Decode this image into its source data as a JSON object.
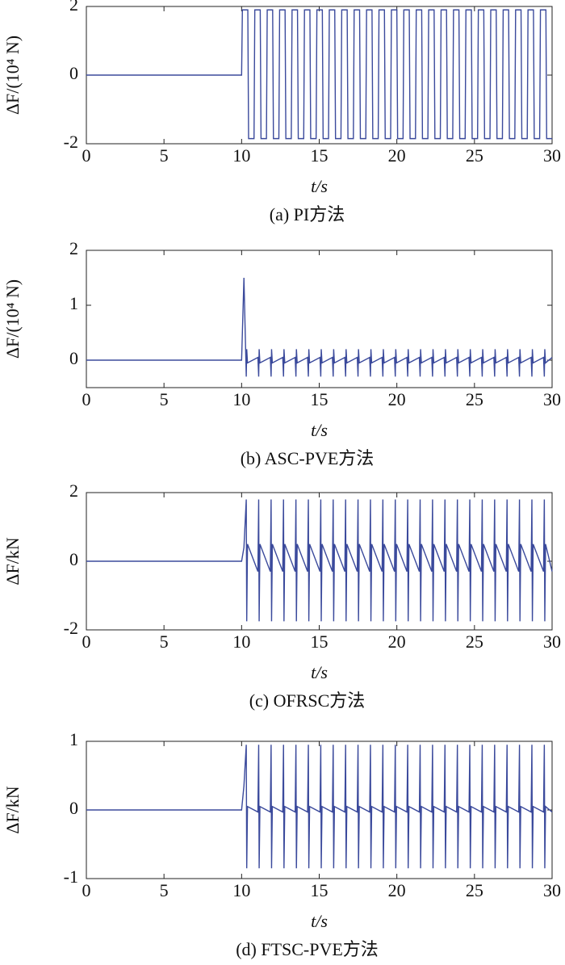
{
  "chart_data": [
    {
      "type": "line",
      "caption": "(a) PI方法",
      "ylabel": "ΔF/(10⁴ N)",
      "xlabel": "t/s",
      "xlim": [
        0,
        30
      ],
      "xticks": [
        0,
        5,
        10,
        15,
        20,
        25,
        30
      ],
      "ylim": [
        -2,
        2
      ],
      "yticks": [
        -2,
        0,
        2
      ],
      "x": [
        0,
        10,
        10.05,
        10.4,
        10.45,
        10.8,
        10.85,
        11.2,
        11.25,
        11.6,
        11.65,
        12,
        12.05,
        12.4,
        12.45,
        12.8,
        12.85,
        13.2,
        13.25,
        13.6,
        13.65,
        14,
        14.05,
        14.4,
        14.45,
        14.8,
        14.85,
        15.2,
        15.25,
        15.6,
        15.65,
        16,
        16.05,
        16.4,
        16.45,
        16.8,
        16.85,
        17.2,
        17.25,
        17.6,
        17.65,
        18,
        18.05,
        18.4,
        18.45,
        18.8,
        18.85,
        19.2,
        19.25,
        19.6,
        19.65,
        20,
        20.05,
        20.4,
        20.45,
        20.8,
        20.85,
        21.2,
        21.25,
        21.6,
        21.65,
        22,
        22.05,
        22.4,
        22.45,
        22.8,
        22.85,
        23.2,
        23.25,
        23.6,
        23.65,
        24,
        24.05,
        24.4,
        24.45,
        24.8,
        24.85,
        25.2,
        25.25,
        25.6,
        25.65,
        26,
        26.05,
        26.4,
        26.45,
        26.8,
        26.85,
        27.2,
        27.25,
        27.6,
        27.65,
        28,
        28.05,
        28.4,
        28.45,
        28.8,
        28.85,
        29.2,
        29.25,
        29.6,
        29.65,
        30
      ],
      "series": [
        {
          "color": "#3b4a9c",
          "values": [
            0,
            0,
            1.9,
            1.9,
            -1.85,
            -1.85,
            1.9,
            1.9,
            -1.85,
            -1.85,
            1.9,
            1.9,
            -1.85,
            -1.85,
            1.9,
            1.9,
            -1.85,
            -1.85,
            1.9,
            1.9,
            -1.85,
            -1.85,
            1.9,
            1.9,
            -1.85,
            -1.85,
            1.9,
            1.9,
            -1.85,
            -1.85,
            1.9,
            1.9,
            -1.85,
            -1.85,
            1.9,
            1.9,
            -1.85,
            -1.85,
            1.9,
            1.9,
            -1.85,
            -1.85,
            1.9,
            1.9,
            -1.85,
            -1.85,
            1.9,
            1.9,
            -1.85,
            -1.85,
            1.9,
            1.9,
            -1.85,
            -1.85,
            1.9,
            1.9,
            -1.85,
            -1.85,
            1.9,
            1.9,
            -1.85,
            -1.85,
            1.9,
            1.9,
            -1.85,
            -1.85,
            1.9,
            1.9,
            -1.85,
            -1.85,
            1.9,
            1.9,
            -1.85,
            -1.85,
            1.9,
            1.9,
            -1.85,
            -1.85,
            1.9,
            1.9,
            -1.85,
            -1.85,
            1.9,
            1.9,
            -1.85,
            -1.85,
            1.9,
            1.9,
            -1.85,
            -1.85,
            1.9,
            1.9,
            -1.85,
            -1.85,
            1.9,
            1.9,
            -1.85,
            -1.85,
            1.9,
            1.9,
            -1.85,
            -1.85
          ]
        }
      ]
    },
    {
      "type": "line",
      "caption": "(b) ASC-PVE方法",
      "ylabel": "ΔF/(10⁴ N)",
      "xlabel": "t/s",
      "xlim": [
        0,
        30
      ],
      "xticks": [
        0,
        5,
        10,
        15,
        20,
        25,
        30
      ],
      "ylim": [
        -0.5,
        2
      ],
      "yticks": [
        0,
        1,
        2
      ],
      "x": [
        0,
        10,
        10.15,
        10.3,
        10.33,
        10.38,
        11.05,
        11.1,
        11.13,
        11.18,
        11.85,
        11.9,
        11.93,
        11.98,
        12.65,
        12.7,
        12.73,
        12.78,
        13.45,
        13.5,
        13.53,
        13.58,
        14.25,
        14.3,
        14.33,
        14.38,
        15.05,
        15.1,
        15.13,
        15.18,
        15.85,
        15.9,
        15.93,
        15.98,
        16.65,
        16.7,
        16.73,
        16.78,
        17.45,
        17.5,
        17.53,
        17.58,
        18.25,
        18.3,
        18.33,
        18.38,
        19.05,
        19.1,
        19.13,
        19.18,
        19.85,
        19.9,
        19.93,
        19.98,
        20.65,
        20.7,
        20.73,
        20.78,
        21.45,
        21.5,
        21.53,
        21.58,
        22.25,
        22.3,
        22.33,
        22.38,
        23.05,
        23.1,
        23.13,
        23.18,
        23.85,
        23.9,
        23.93,
        23.98,
        24.65,
        24.7,
        24.73,
        24.78,
        25.45,
        25.5,
        25.53,
        25.58,
        26.25,
        26.3,
        26.33,
        26.38,
        27.05,
        27.1,
        27.13,
        27.18,
        27.85,
        27.9,
        27.93,
        27.98,
        28.65,
        28.7,
        28.73,
        28.78,
        29.45,
        29.5,
        29.53,
        29.58,
        30
      ],
      "series": [
        {
          "color": "#3b4a9c",
          "values": [
            0,
            0,
            1.5,
            -0.3,
            0.2,
            -0.05,
            0.05,
            -0.3,
            0.2,
            -0.05,
            0.05,
            -0.3,
            0.2,
            -0.05,
            0.05,
            -0.3,
            0.2,
            -0.05,
            0.05,
            -0.3,
            0.2,
            -0.05,
            0.05,
            -0.3,
            0.2,
            -0.05,
            0.05,
            -0.3,
            0.2,
            -0.05,
            0.05,
            -0.3,
            0.2,
            -0.05,
            0.05,
            -0.3,
            0.2,
            -0.05,
            0.05,
            -0.3,
            0.2,
            -0.05,
            0.05,
            -0.3,
            0.2,
            -0.05,
            0.05,
            -0.3,
            0.2,
            -0.05,
            0.05,
            -0.3,
            0.2,
            -0.05,
            0.05,
            -0.3,
            0.2,
            -0.05,
            0.05,
            -0.3,
            0.2,
            -0.05,
            0.05,
            -0.3,
            0.2,
            -0.05,
            0.05,
            -0.3,
            0.2,
            -0.05,
            0.05,
            -0.3,
            0.2,
            -0.05,
            0.05,
            -0.3,
            0.2,
            -0.05,
            0.05,
            -0.3,
            0.2,
            -0.05,
            0.05,
            -0.3,
            0.2,
            -0.05,
            0.05,
            -0.3,
            0.2,
            -0.05,
            0.05,
            -0.3,
            0.2,
            -0.05,
            0.05,
            -0.3,
            0.2,
            -0.05,
            0.05,
            -0.3,
            0.2,
            -0.05,
            0.05
          ]
        }
      ]
    },
    {
      "type": "line",
      "caption": "(c) OFRSC方法",
      "ylabel": "ΔF/kN",
      "xlabel": "t/s",
      "xlim": [
        0,
        30
      ],
      "xticks": [
        0,
        5,
        10,
        15,
        20,
        25,
        30
      ],
      "ylim": [
        -2,
        2
      ],
      "yticks": [
        -2,
        0,
        2
      ],
      "x": [
        0,
        10,
        10.15,
        10.3,
        10.33,
        10.38,
        11.05,
        11.1,
        11.13,
        11.18,
        11.85,
        11.9,
        11.93,
        11.98,
        12.65,
        12.7,
        12.73,
        12.78,
        13.45,
        13.5,
        13.53,
        13.58,
        14.25,
        14.3,
        14.33,
        14.38,
        15.05,
        15.1,
        15.13,
        15.18,
        15.85,
        15.9,
        15.93,
        15.98,
        16.65,
        16.7,
        16.73,
        16.78,
        17.45,
        17.5,
        17.53,
        17.58,
        18.25,
        18.3,
        18.33,
        18.38,
        19.05,
        19.1,
        19.13,
        19.18,
        19.85,
        19.9,
        19.93,
        19.98,
        20.65,
        20.7,
        20.73,
        20.78,
        21.45,
        21.5,
        21.53,
        21.58,
        22.25,
        22.3,
        22.33,
        22.38,
        23.05,
        23.1,
        23.13,
        23.18,
        23.85,
        23.9,
        23.93,
        23.98,
        24.65,
        24.7,
        24.73,
        24.78,
        25.45,
        25.5,
        25.53,
        25.58,
        26.25,
        26.3,
        26.33,
        26.38,
        27.05,
        27.1,
        27.13,
        27.18,
        27.85,
        27.9,
        27.93,
        27.98,
        28.65,
        28.7,
        28.73,
        28.78,
        29.45,
        29.5,
        29.53,
        29.58,
        30
      ],
      "series": [
        {
          "color": "#3b4a9c",
          "values": [
            0,
            0,
            0.4,
            1.8,
            -1.75,
            0.5,
            -0.3,
            1.8,
            -1.75,
            0.5,
            -0.3,
            1.8,
            -1.75,
            0.5,
            -0.3,
            1.8,
            -1.75,
            0.5,
            -0.3,
            1.8,
            -1.75,
            0.5,
            -0.3,
            1.8,
            -1.75,
            0.5,
            -0.3,
            1.8,
            -1.75,
            0.5,
            -0.3,
            1.8,
            -1.75,
            0.5,
            -0.3,
            1.8,
            -1.75,
            0.5,
            -0.3,
            1.8,
            -1.75,
            0.5,
            -0.3,
            1.8,
            -1.75,
            0.5,
            -0.3,
            1.8,
            -1.75,
            0.5,
            -0.3,
            1.8,
            -1.75,
            0.5,
            -0.3,
            1.8,
            -1.75,
            0.5,
            -0.3,
            1.8,
            -1.75,
            0.5,
            -0.3,
            1.8,
            -1.75,
            0.5,
            -0.3,
            1.8,
            -1.75,
            0.5,
            -0.3,
            1.8,
            -1.75,
            0.5,
            -0.3,
            1.8,
            -1.75,
            0.5,
            -0.3,
            1.8,
            -1.75,
            0.5,
            -0.3,
            1.8,
            -1.75,
            0.5,
            -0.3,
            1.8,
            -1.75,
            0.5,
            -0.3,
            1.8,
            -1.75,
            0.5,
            -0.3,
            1.8,
            -1.75,
            0.5,
            -0.3,
            1.8,
            -1.75,
            0.5,
            -0.3
          ]
        }
      ]
    },
    {
      "type": "line",
      "caption": "(d) FTSC-PVE方法",
      "ylabel": "ΔF/kN",
      "xlabel": "t/s",
      "xlim": [
        0,
        30
      ],
      "xticks": [
        0,
        5,
        10,
        15,
        20,
        25,
        30
      ],
      "ylim": [
        -1,
        1
      ],
      "yticks": [
        -1,
        0,
        1
      ],
      "x": [
        0,
        10,
        10.15,
        10.3,
        10.33,
        10.38,
        11.05,
        11.1,
        11.13,
        11.18,
        11.85,
        11.9,
        11.93,
        11.98,
        12.65,
        12.7,
        12.73,
        12.78,
        13.45,
        13.5,
        13.53,
        13.58,
        14.25,
        14.3,
        14.33,
        14.38,
        15.05,
        15.1,
        15.13,
        15.18,
        15.85,
        15.9,
        15.93,
        15.98,
        16.65,
        16.7,
        16.73,
        16.78,
        17.45,
        17.5,
        17.53,
        17.58,
        18.25,
        18.3,
        18.33,
        18.38,
        19.05,
        19.1,
        19.13,
        19.18,
        19.85,
        19.9,
        19.93,
        19.98,
        20.65,
        20.7,
        20.73,
        20.78,
        21.45,
        21.5,
        21.53,
        21.58,
        22.25,
        22.3,
        22.33,
        22.38,
        23.05,
        23.1,
        23.13,
        23.18,
        23.85,
        23.9,
        23.93,
        23.98,
        24.65,
        24.7,
        24.73,
        24.78,
        25.45,
        25.5,
        25.53,
        25.58,
        26.25,
        26.3,
        26.33,
        26.38,
        27.05,
        27.1,
        27.13,
        27.18,
        27.85,
        27.9,
        27.93,
        27.98,
        28.65,
        28.7,
        28.73,
        28.78,
        29.45,
        29.5,
        29.53,
        29.58,
        30
      ],
      "series": [
        {
          "color": "#3b4a9c",
          "values": [
            0,
            0,
            0.35,
            0.95,
            -0.85,
            0.05,
            -0.03,
            0.95,
            -0.85,
            0.05,
            -0.03,
            0.95,
            -0.85,
            0.05,
            -0.03,
            0.95,
            -0.85,
            0.05,
            -0.03,
            0.95,
            -0.85,
            0.05,
            -0.03,
            0.95,
            -0.85,
            0.05,
            -0.03,
            0.95,
            -0.85,
            0.05,
            -0.03,
            0.95,
            -0.85,
            0.05,
            -0.03,
            0.95,
            -0.85,
            0.05,
            -0.03,
            0.95,
            -0.85,
            0.05,
            -0.03,
            0.95,
            -0.85,
            0.05,
            -0.03,
            0.95,
            -0.85,
            0.05,
            -0.03,
            0.95,
            -0.85,
            0.05,
            -0.03,
            0.95,
            -0.85,
            0.05,
            -0.03,
            0.95,
            -0.85,
            0.05,
            -0.03,
            0.95,
            -0.85,
            0.05,
            -0.03,
            0.95,
            -0.85,
            0.05,
            -0.03,
            0.95,
            -0.85,
            0.05,
            -0.03,
            0.95,
            -0.85,
            0.05,
            -0.03,
            0.95,
            -0.85,
            0.05,
            -0.03,
            0.95,
            -0.85,
            0.05,
            -0.03,
            0.95,
            -0.85,
            0.05,
            -0.03,
            0.95,
            -0.85,
            0.05,
            -0.03,
            0.95,
            -0.85,
            0.05,
            -0.03,
            0.95,
            -0.85,
            0.05,
            -0.03
          ]
        }
      ]
    }
  ]
}
